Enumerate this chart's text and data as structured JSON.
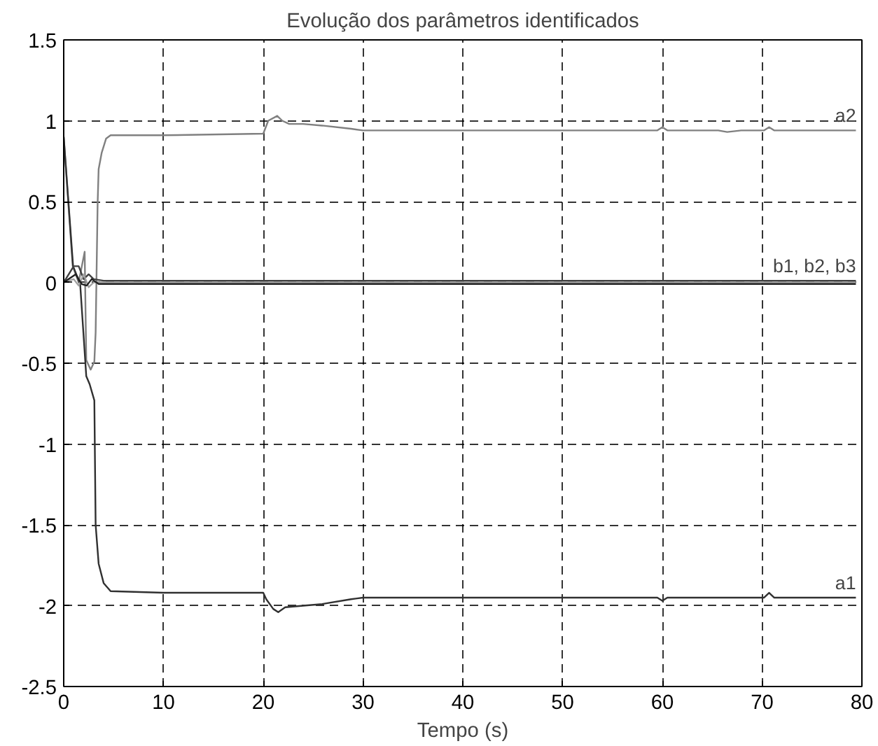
{
  "chart_data": {
    "type": "line",
    "title": "Evolução dos parâmetros identificados",
    "xlabel": "Tempo (s)",
    "xlim": [
      0,
      80
    ],
    "xticks": [
      0,
      10,
      20,
      30,
      40,
      50,
      60,
      70,
      80
    ],
    "ylim": [
      -2.5,
      1.5
    ],
    "yticks": [
      -2.5,
      -2,
      -1.5,
      -1,
      -0.5,
      0,
      0.5,
      1,
      1.5
    ],
    "grid": true,
    "legend": false,
    "line_style": "solid",
    "marker": "none",
    "series": [
      {
        "name": "a2",
        "color": "#808080",
        "x": [
          0,
          0.9,
          1.5,
          2.1,
          2.26,
          2.7,
          3.07,
          3.2,
          3.4,
          3.5,
          3.8,
          4.25,
          4.7,
          10,
          20,
          20.5,
          21.4,
          21.9,
          22.6,
          24,
          25.9,
          28.8,
          30,
          59.5,
          60,
          60.5,
          65.6,
          66.5,
          67.9,
          70.2,
          70.7,
          71.2,
          79.4
        ],
        "values": [
          0.9,
          0.1,
          0.0,
          0.19,
          -0.48,
          -0.54,
          -0.49,
          -0.31,
          0.49,
          0.7,
          0.8,
          0.89,
          0.91,
          0.91,
          0.92,
          1.0,
          1.03,
          1.0,
          0.98,
          0.98,
          0.97,
          0.95,
          0.94,
          0.94,
          0.96,
          0.94,
          0.94,
          0.93,
          0.94,
          0.94,
          0.96,
          0.94,
          0.94
        ]
      },
      {
        "name": "a1",
        "color": "#303030",
        "x": [
          0,
          0.94,
          1.65,
          2.26,
          2.6,
          3.07,
          3.2,
          3.5,
          4,
          4.7,
          10,
          20,
          20.3,
          21,
          21.5,
          22.2,
          24,
          25.9,
          28.8,
          30,
          59.5,
          60,
          60.5,
          70.2,
          70.7,
          71.2,
          79.4
        ],
        "values": [
          0.9,
          0.1,
          -0.01,
          -0.58,
          -0.63,
          -0.73,
          -1.5,
          -1.74,
          -1.86,
          -1.91,
          -1.92,
          -1.92,
          -1.96,
          -2.02,
          -2.04,
          -2.01,
          -2.0,
          -1.99,
          -1.96,
          -1.95,
          -1.95,
          -1.97,
          -1.95,
          -1.95,
          -1.92,
          -1.95,
          -1.95
        ]
      },
      {
        "name": "b1, b2, b3",
        "color": "#404040",
        "x": [
          0,
          1,
          1.5,
          2,
          2.5,
          3,
          4,
          79.4
        ],
        "values": [
          0,
          0.1,
          0.1,
          0.02,
          0.05,
          0.02,
          0.01,
          0.01
        ]
      },
      {
        "color": "#a0a0a0",
        "x": [
          0,
          1,
          1.5,
          2,
          2.5,
          3,
          79.4
        ],
        "values": [
          0,
          0.02,
          -0.02,
          0.05,
          -0.03,
          0.0,
          0.0
        ]
      },
      {
        "color": "#202020",
        "x": [
          0,
          1.2,
          1.8,
          2.3,
          2.8,
          3.5,
          79.4
        ],
        "values": [
          0,
          0.05,
          -0.01,
          -0.02,
          0.02,
          -0.01,
          -0.01
        ]
      }
    ]
  }
}
